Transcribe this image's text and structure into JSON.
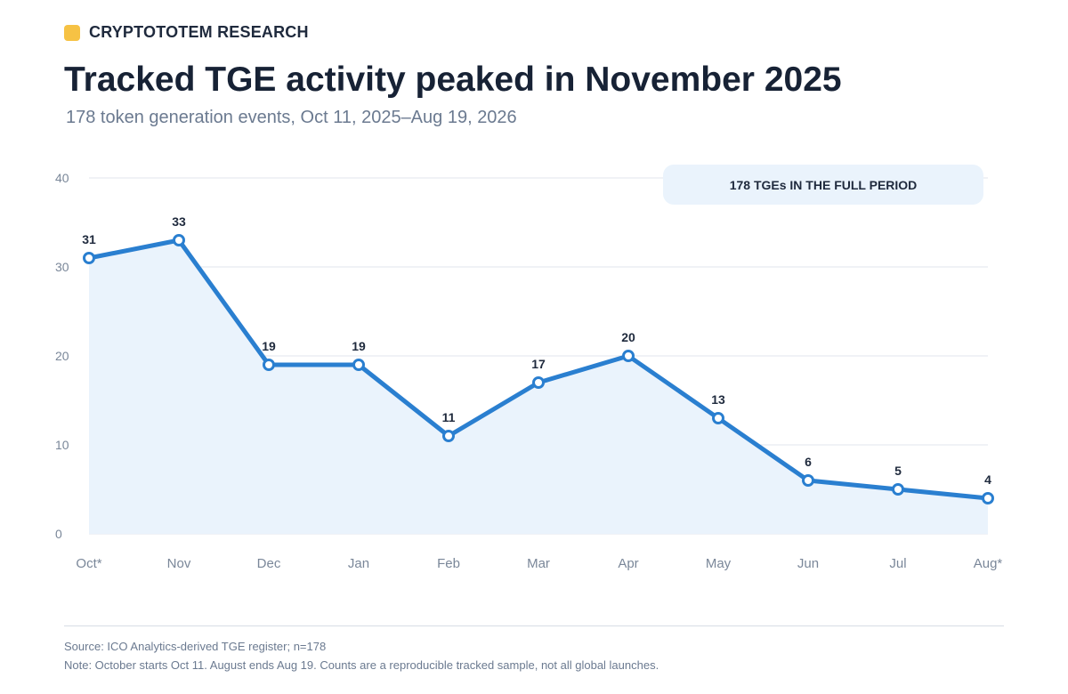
{
  "brand": {
    "name": "CRYPTOTOTEM RESEARCH",
    "mark_color": "#f6c244"
  },
  "header": {
    "title": "Tracked TGE activity peaked in November 2025",
    "subtitle": "178 token generation events, Oct 11, 2025–Aug 19, 2026"
  },
  "chart_data": {
    "type": "line",
    "title": "Tracked TGE activity peaked in November 2025",
    "subtitle": "178 token generation events, Oct 11, 2025–Aug 19, 2026",
    "categories": [
      "Oct*",
      "Nov",
      "Dec",
      "Jan",
      "Feb",
      "Mar",
      "Apr",
      "May",
      "Jun",
      "Jul",
      "Aug*"
    ],
    "values": [
      31,
      33,
      19,
      19,
      11,
      17,
      20,
      13,
      6,
      5,
      4
    ],
    "ylim": [
      0,
      40
    ],
    "yticks": [
      0,
      10,
      20,
      30,
      40
    ],
    "xlabel": "",
    "ylabel": "",
    "grid": true,
    "area_fill": true,
    "data_labels": true,
    "callout": "178 TGEs IN THE FULL PERIOD",
    "colors": {
      "line": "#2a7fd0",
      "area": "#eaf3fc",
      "grid": "#e1e6ec",
      "callout_bg": "#eaf3fc"
    }
  },
  "footer": {
    "source": "Source: ICO Analytics-derived TGE register; n=178",
    "note": "Note: October starts Oct 11. August ends Aug 19. Counts are a reproducible tracked sample, not all global launches."
  }
}
